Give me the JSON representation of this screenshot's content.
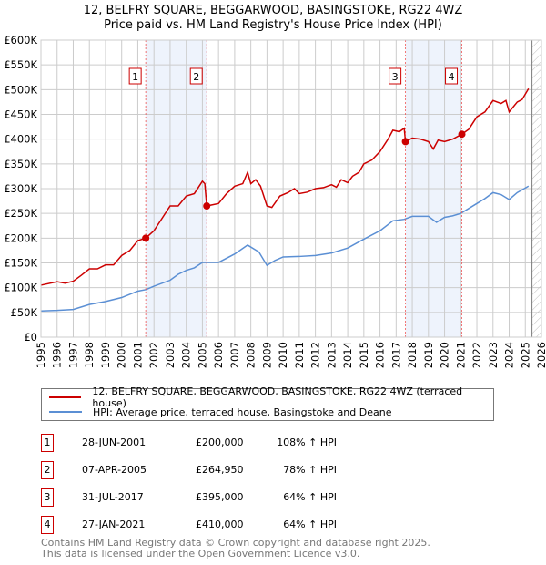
{
  "title": "12, BELFRY SQUARE, BEGGARWOOD, BASINGSTOKE, RG22 4WZ",
  "subtitle": "Price paid vs. HM Land Registry's House Price Index (HPI)",
  "chart_data": {
    "type": "line",
    "title": "12, BELFRY SQUARE, BEGGARWOOD, BASINGSTOKE, RG22 4WZ",
    "xlim": [
      1995,
      2026
    ],
    "ylim": [
      0,
      600000
    ],
    "x_ticks": [
      "1995",
      "1996",
      "1997",
      "1998",
      "1999",
      "2000",
      "2001",
      "2002",
      "2003",
      "2004",
      "2005",
      "2006",
      "2007",
      "2008",
      "2009",
      "2010",
      "2011",
      "2012",
      "2013",
      "2014",
      "2015",
      "2016",
      "2017",
      "2018",
      "2019",
      "2020",
      "2021",
      "2022",
      "2023",
      "2024",
      "2025",
      "2026"
    ],
    "y_ticks": [
      {
        "v": 0,
        "l": "£0"
      },
      {
        "v": 50000,
        "l": "£50K"
      },
      {
        "v": 100000,
        "l": "£100K"
      },
      {
        "v": 150000,
        "l": "£150K"
      },
      {
        "v": 200000,
        "l": "£200K"
      },
      {
        "v": 250000,
        "l": "£250K"
      },
      {
        "v": 300000,
        "l": "£300K"
      },
      {
        "v": 350000,
        "l": "£350K"
      },
      {
        "v": 400000,
        "l": "£400K"
      },
      {
        "v": 450000,
        "l": "£450K"
      },
      {
        "v": 500000,
        "l": "£500K"
      },
      {
        "v": 550000,
        "l": "£550K"
      },
      {
        "v": 600000,
        "l": "£600K"
      }
    ],
    "grid": true,
    "shaded_ranges": [
      [
        2001.49,
        2005.27
      ],
      [
        2017.58,
        2021.07
      ]
    ],
    "forecast_start": 2025.4,
    "series": [
      {
        "name": "12, BELFRY SQUARE, BEGGARWOOD, BASINGSTOKE, RG22 4WZ (terraced house)",
        "color": "#cc0000",
        "x": [
          1995,
          1996,
          1996.5,
          1997,
          1997.5,
          1998,
          1998.5,
          1999,
          1999.5,
          2000,
          2000.5,
          2001,
          2001.49,
          2002,
          2002.5,
          2003,
          2003.5,
          2004,
          2004.5,
          2005,
          2005.15,
          2005.27,
          2006,
          2006.5,
          2007,
          2007.5,
          2007.8,
          2008,
          2008.3,
          2008.6,
          2009,
          2009.3,
          2009.8,
          2010.3,
          2010.7,
          2011,
          2011.5,
          2012,
          2012.5,
          2013,
          2013.3,
          2013.6,
          2014,
          2014.3,
          2014.7,
          2015,
          2015.5,
          2016,
          2016.5,
          2016.8,
          2017.2,
          2017.5,
          2017.58,
          2018,
          2018.5,
          2019,
          2019.3,
          2019.6,
          2020,
          2020.5,
          2021.07,
          2021.5,
          2022,
          2022.5,
          2023,
          2023.5,
          2023.8,
          2024,
          2024.5,
          2024.8,
          2025.2
        ],
        "values": [
          105000,
          112000,
          109000,
          113000,
          125000,
          138000,
          138000,
          146000,
          146000,
          165000,
          175000,
          195000,
          200000,
          215000,
          240000,
          265000,
          265000,
          285000,
          290000,
          315000,
          310000,
          264950,
          270000,
          290000,
          305000,
          310000,
          333000,
          310000,
          318000,
          305000,
          265000,
          262000,
          285000,
          292000,
          300000,
          290000,
          293000,
          300000,
          302000,
          308000,
          303000,
          318000,
          312000,
          325000,
          333000,
          350000,
          358000,
          375000,
          400000,
          418000,
          415000,
          422000,
          395000,
          402000,
          400000,
          395000,
          380000,
          398000,
          395000,
          400000,
          410000,
          420000,
          445000,
          455000,
          478000,
          472000,
          478000,
          455000,
          475000,
          480000,
          502000
        ]
      },
      {
        "name": "HPI: Average price, terraced house, Basingstoke and Deane",
        "color": "#5b8fd4",
        "x": [
          1995,
          1996,
          1997,
          1998,
          1999,
          2000,
          2001,
          2001.5,
          2002,
          2003,
          2003.5,
          2004,
          2004.5,
          2005,
          2006,
          2007,
          2007.8,
          2008.5,
          2009,
          2009.5,
          2010,
          2011,
          2012,
          2013,
          2014,
          2015,
          2016,
          2016.8,
          2017.5,
          2018,
          2019,
          2019.5,
          2020,
          2020.5,
          2021,
          2022,
          2022.5,
          2023,
          2023.5,
          2024,
          2024.5,
          2025.2
        ],
        "values": [
          53000,
          54000,
          56000,
          66000,
          72000,
          80000,
          93000,
          96000,
          103000,
          115000,
          127000,
          135000,
          140000,
          151000,
          151000,
          168000,
          186000,
          172000,
          145000,
          155000,
          162000,
          163000,
          165000,
          170000,
          180000,
          198000,
          215000,
          235000,
          238000,
          244000,
          244000,
          232000,
          242000,
          245000,
          250000,
          270000,
          280000,
          292000,
          288000,
          278000,
          292000,
          305000
        ]
      }
    ],
    "sales": [
      {
        "n": "1",
        "x": 2001.49,
        "v": 200000
      },
      {
        "n": "2",
        "x": 2005.27,
        "v": 264950
      },
      {
        "n": "3",
        "x": 2017.58,
        "v": 395000
      },
      {
        "n": "4",
        "x": 2021.07,
        "v": 410000
      }
    ]
  },
  "legend": {
    "red": "12, BELFRY SQUARE, BEGGARWOOD, BASINGSTOKE, RG22 4WZ (terraced house)",
    "blue": "HPI: Average price, terraced house, Basingstoke and Deane"
  },
  "table": [
    {
      "n": "1",
      "date": "28-JUN-2001",
      "price": "£200,000",
      "hpi": "108% ↑ HPI"
    },
    {
      "n": "2",
      "date": "07-APR-2005",
      "price": "£264,950",
      "hpi": "78% ↑ HPI"
    },
    {
      "n": "3",
      "date": "31-JUL-2017",
      "price": "£395,000",
      "hpi": "64% ↑ HPI"
    },
    {
      "n": "4",
      "date": "27-JAN-2021",
      "price": "£410,000",
      "hpi": "64% ↑ HPI"
    }
  ],
  "footer": {
    "line1": "Contains HM Land Registry data © Crown copyright and database right 2025.",
    "line2": "This data is licensed under the Open Government Licence v3.0."
  }
}
